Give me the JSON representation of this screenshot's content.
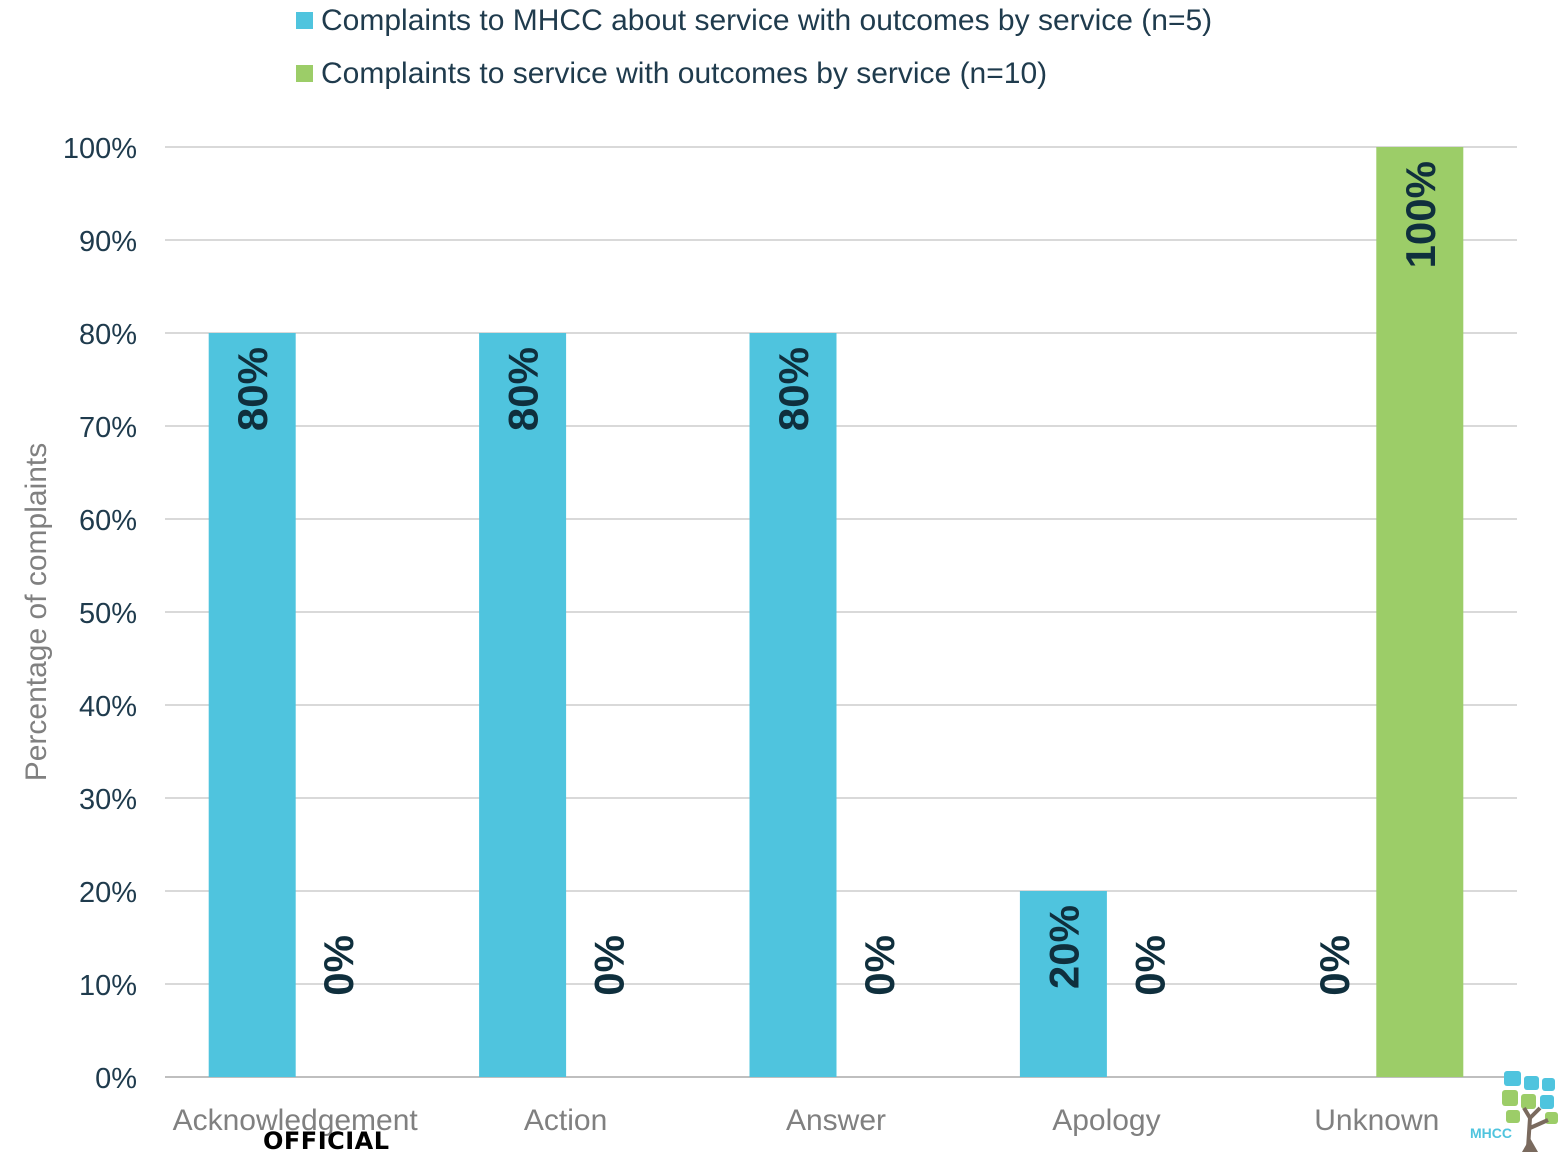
{
  "chart_data": {
    "type": "bar",
    "categories": [
      "Acknowledgement",
      "Action",
      "Answer",
      "Apology",
      "Unknown"
    ],
    "series": [
      {
        "name": "Complaints to MHCC about service with outcomes by service (n=5)",
        "color": "#4fc4de",
        "values": [
          80,
          80,
          80,
          20,
          0
        ]
      },
      {
        "name": "Complaints to service with outcomes by service (n=10)",
        "color": "#9ccd68",
        "values": [
          0,
          0,
          0,
          0,
          100
        ]
      }
    ],
    "data_labels": [
      [
        "80%",
        "80%",
        "80%",
        "20%",
        "0%"
      ],
      [
        "0%",
        "0%",
        "0%",
        "0%",
        "100%"
      ]
    ],
    "ylabel": "Percentage of complaints",
    "xlabel": "",
    "ylim": [
      0,
      100
    ],
    "yticks": [
      "0%",
      "10%",
      "20%",
      "30%",
      "40%",
      "50%",
      "60%",
      "70%",
      "80%",
      "90%",
      "100%"
    ],
    "grid": true,
    "legend_position": "top"
  },
  "footer": {
    "classification": "OFFICIAL",
    "logo_text": "MHCC"
  }
}
